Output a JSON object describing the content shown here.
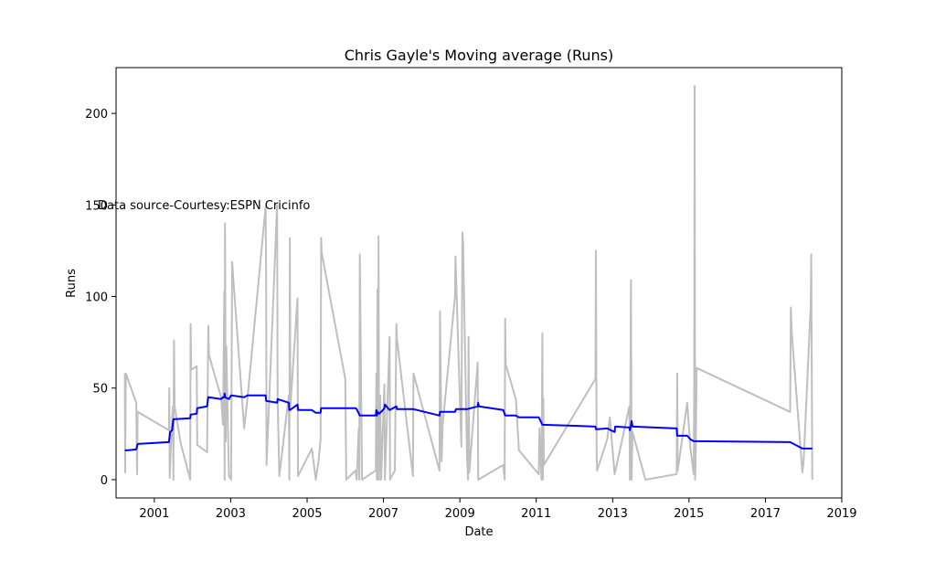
{
  "chart_data": {
    "type": "line",
    "title": "Chris Gayle's Moving average (Runs)",
    "xlabel": "Date",
    "ylabel": "Runs",
    "annotation": "Data source-Courtesy:ESPN Cricinfo",
    "xlim": [
      "2000-01-01",
      "2019-01-01"
    ],
    "ylim": [
      -10,
      225
    ],
    "x_ticks": [
      "2001",
      "2003",
      "2005",
      "2007",
      "2009",
      "2011",
      "2013",
      "2015",
      "2017",
      "2019"
    ],
    "y_ticks": [
      0,
      50,
      100,
      150,
      200
    ],
    "grid": false,
    "series": [
      {
        "color": "#bfbfbf",
        "points": [
          [
            "2000-03-25",
            58
          ],
          [
            "2000-03-28",
            4
          ],
          [
            "2000-04-03",
            58
          ],
          [
            "2000-07-12",
            42
          ],
          [
            "2000-07-20",
            3
          ],
          [
            "2000-07-25",
            37
          ],
          [
            "2001-05-20",
            27
          ],
          [
            "2001-05-24",
            50
          ],
          [
            "2001-05-28",
            1
          ],
          [
            "2001-06-15",
            28
          ],
          [
            "2001-06-28",
            40
          ],
          [
            "2001-07-02",
            0
          ],
          [
            "2001-07-08",
            76
          ],
          [
            "2001-07-14",
            40
          ],
          [
            "2001-09-10",
            20
          ],
          [
            "2001-12-10",
            0
          ],
          [
            "2001-12-14",
            85
          ],
          [
            "2001-12-20",
            60
          ],
          [
            "2002-02-10",
            62
          ],
          [
            "2002-02-15",
            19
          ],
          [
            "2002-05-20",
            15
          ],
          [
            "2002-06-01",
            84
          ],
          [
            "2002-06-08",
            68
          ],
          [
            "2002-10-01",
            45
          ],
          [
            "2002-10-20",
            30
          ],
          [
            "2002-11-01",
            103
          ],
          [
            "2002-11-04",
            0
          ],
          [
            "2002-11-08",
            140
          ],
          [
            "2002-11-15",
            21
          ],
          [
            "2002-11-20",
            73
          ],
          [
            "2002-12-15",
            2
          ],
          [
            "2003-01-05",
            0
          ],
          [
            "2003-01-15",
            119
          ],
          [
            "2003-02-01",
            105
          ],
          [
            "2003-05-10",
            28
          ],
          [
            "2003-06-10",
            44
          ],
          [
            "2003-12-01",
            149
          ],
          [
            "2003-12-06",
            112
          ],
          [
            "2003-12-10",
            8
          ],
          [
            "2004-03-20",
            150
          ],
          [
            "2004-03-25",
            45
          ],
          [
            "2004-04-10",
            2
          ],
          [
            "2004-07-10",
            46
          ],
          [
            "2004-07-15",
            0
          ],
          [
            "2004-07-20",
            132
          ],
          [
            "2004-07-25",
            40
          ],
          [
            "2004-10-01",
            99
          ],
          [
            "2004-10-06",
            2
          ],
          [
            "2005-02-15",
            17
          ],
          [
            "2005-03-25",
            0
          ],
          [
            "2005-04-20",
            10
          ],
          [
            "2005-05-10",
            22
          ],
          [
            "2005-05-15",
            132
          ],
          [
            "2005-05-20",
            124
          ],
          [
            "2006-01-01",
            55
          ],
          [
            "2006-01-10",
            0
          ],
          [
            "2006-04-10",
            5
          ],
          [
            "2006-04-20",
            0
          ],
          [
            "2006-05-10",
            28
          ],
          [
            "2006-05-15",
            0
          ],
          [
            "2006-05-20",
            123
          ],
          [
            "2006-06-10",
            0
          ],
          [
            "2006-10-20",
            5
          ],
          [
            "2006-10-25",
            58
          ],
          [
            "2006-10-30",
            0
          ],
          [
            "2006-11-05",
            104
          ],
          [
            "2006-11-10",
            0
          ],
          [
            "2006-11-15",
            133
          ],
          [
            "2006-11-20",
            0
          ],
          [
            "2006-12-01",
            46
          ],
          [
            "2006-12-10",
            0
          ],
          [
            "2007-01-10",
            52
          ],
          [
            "2007-01-15",
            0
          ],
          [
            "2007-03-01",
            78
          ],
          [
            "2007-03-05",
            0
          ],
          [
            "2007-04-20",
            5
          ],
          [
            "2007-05-05",
            85
          ],
          [
            "2007-05-10",
            77
          ],
          [
            "2007-10-10",
            2
          ],
          [
            "2007-10-15",
            58
          ],
          [
            "2008-06-20",
            5
          ],
          [
            "2008-06-25",
            92
          ],
          [
            "2008-07-10",
            10
          ],
          [
            "2008-07-20",
            30
          ],
          [
            "2008-11-15",
            100
          ],
          [
            "2008-11-20",
            122
          ],
          [
            "2008-11-25",
            112
          ],
          [
            "2009-01-15",
            18
          ],
          [
            "2009-01-25",
            135
          ],
          [
            "2009-02-01",
            128
          ],
          [
            "2009-03-10",
            12
          ],
          [
            "2009-03-20",
            0
          ],
          [
            "2009-03-25",
            78
          ],
          [
            "2009-04-01",
            4
          ],
          [
            "2009-06-20",
            64
          ],
          [
            "2009-06-25",
            0
          ],
          [
            "2010-02-20",
            8
          ],
          [
            "2010-03-05",
            0
          ],
          [
            "2010-03-10",
            88
          ],
          [
            "2010-03-15",
            63
          ],
          [
            "2010-06-20",
            44
          ],
          [
            "2010-07-20",
            16
          ],
          [
            "2011-01-25",
            3
          ],
          [
            "2011-02-01",
            28
          ],
          [
            "2011-02-20",
            0
          ],
          [
            "2011-03-01",
            80
          ],
          [
            "2011-03-05",
            0
          ],
          [
            "2011-03-10",
            44
          ],
          [
            "2011-03-15",
            8
          ],
          [
            "2012-07-20",
            55
          ],
          [
            "2012-07-25",
            125
          ],
          [
            "2012-08-01",
            13
          ],
          [
            "2012-08-05",
            5
          ],
          [
            "2012-11-10",
            22
          ],
          [
            "2012-12-05",
            34
          ],
          [
            "2013-01-20",
            3
          ],
          [
            "2013-06-10",
            40
          ],
          [
            "2013-06-15",
            0
          ],
          [
            "2013-06-25",
            109
          ],
          [
            "2013-07-01",
            0
          ],
          [
            "2013-07-10",
            26
          ],
          [
            "2013-11-10",
            0
          ],
          [
            "2014-09-05",
            3
          ],
          [
            "2014-09-10",
            58
          ],
          [
            "2014-09-15",
            5
          ],
          [
            "2014-12-15",
            42
          ],
          [
            "2015-01-15",
            17
          ],
          [
            "2015-02-15",
            3
          ],
          [
            "2015-02-20",
            50
          ],
          [
            "2015-02-24",
            215
          ],
          [
            "2015-02-28",
            0
          ],
          [
            "2015-03-05",
            8
          ],
          [
            "2015-03-15",
            61
          ],
          [
            "2017-08-25",
            37
          ],
          [
            "2017-09-01",
            94
          ],
          [
            "2017-09-10",
            80
          ],
          [
            "2017-12-20",
            4
          ],
          [
            "2018-01-01",
            10
          ],
          [
            "2018-03-10",
            95
          ],
          [
            "2018-03-15",
            123
          ],
          [
            "2018-03-25",
            0
          ]
        ]
      },
      {
        "color": "#0000ff",
        "points": [
          [
            "2000-03-25",
            16
          ],
          [
            "2000-04-15",
            16
          ],
          [
            "2000-07-12",
            16.5
          ],
          [
            "2000-07-25",
            19.5
          ],
          [
            "2001-05-20",
            20.5
          ],
          [
            "2001-06-01",
            26
          ],
          [
            "2001-06-20",
            27
          ],
          [
            "2001-07-02",
            33
          ],
          [
            "2001-12-10",
            33.5
          ],
          [
            "2001-12-14",
            35.5
          ],
          [
            "2002-02-10",
            36
          ],
          [
            "2002-02-15",
            39
          ],
          [
            "2002-05-20",
            40
          ],
          [
            "2002-06-01",
            45
          ],
          [
            "2002-10-01",
            44
          ],
          [
            "2002-10-20",
            45
          ],
          [
            "2002-11-01",
            45
          ],
          [
            "2002-11-04",
            47
          ],
          [
            "2002-11-08",
            45
          ],
          [
            "2002-12-15",
            44
          ],
          [
            "2003-01-05",
            46
          ],
          [
            "2003-05-10",
            45
          ],
          [
            "2003-06-10",
            46
          ],
          [
            "2003-12-01",
            46
          ],
          [
            "2003-12-06",
            43
          ],
          [
            "2004-03-20",
            42
          ],
          [
            "2004-03-25",
            44
          ],
          [
            "2004-07-10",
            42
          ],
          [
            "2004-07-15",
            38
          ],
          [
            "2004-07-20",
            38
          ],
          [
            "2004-10-01",
            41
          ],
          [
            "2004-10-06",
            38
          ],
          [
            "2005-02-15",
            38
          ],
          [
            "2005-03-25",
            36.5
          ],
          [
            "2005-05-10",
            36.5
          ],
          [
            "2005-05-15",
            39
          ],
          [
            "2006-04-10",
            39
          ],
          [
            "2006-04-20",
            38.5
          ],
          [
            "2006-05-20",
            35
          ],
          [
            "2006-10-20",
            35
          ],
          [
            "2006-10-25",
            38
          ],
          [
            "2006-10-30",
            35
          ],
          [
            "2006-11-05",
            37
          ],
          [
            "2006-11-20",
            36
          ],
          [
            "2006-12-10",
            37
          ],
          [
            "2007-01-10",
            39
          ],
          [
            "2007-01-15",
            41
          ],
          [
            "2007-03-01",
            38
          ],
          [
            "2007-05-05",
            40
          ],
          [
            "2007-05-10",
            38.5
          ],
          [
            "2007-10-15",
            38.5
          ],
          [
            "2008-06-20",
            35
          ],
          [
            "2008-06-25",
            37
          ],
          [
            "2008-11-15",
            37
          ],
          [
            "2008-11-25",
            38.5
          ],
          [
            "2009-03-10",
            38.5
          ],
          [
            "2009-06-20",
            40
          ],
          [
            "2009-06-25",
            42
          ],
          [
            "2009-07-01",
            40
          ],
          [
            "2010-02-20",
            38
          ],
          [
            "2010-03-10",
            35
          ],
          [
            "2010-06-20",
            35
          ],
          [
            "2010-07-20",
            34
          ],
          [
            "2011-01-25",
            34
          ],
          [
            "2011-03-01",
            30
          ],
          [
            "2012-07-20",
            29
          ],
          [
            "2012-07-25",
            27.5
          ],
          [
            "2012-11-10",
            28
          ],
          [
            "2013-01-20",
            26
          ],
          [
            "2013-01-25",
            29
          ],
          [
            "2013-06-10",
            28.5
          ],
          [
            "2013-06-15",
            27
          ],
          [
            "2013-06-25",
            30
          ],
          [
            "2013-07-01",
            32
          ],
          [
            "2013-07-10",
            29
          ],
          [
            "2014-09-05",
            28
          ],
          [
            "2014-09-10",
            24
          ],
          [
            "2014-12-15",
            24
          ],
          [
            "2015-01-15",
            22
          ],
          [
            "2015-02-15",
            21
          ],
          [
            "2015-03-05",
            21
          ],
          [
            "2017-08-25",
            20.5
          ],
          [
            "2017-12-20",
            17
          ],
          [
            "2018-03-25",
            17
          ]
        ]
      }
    ]
  }
}
